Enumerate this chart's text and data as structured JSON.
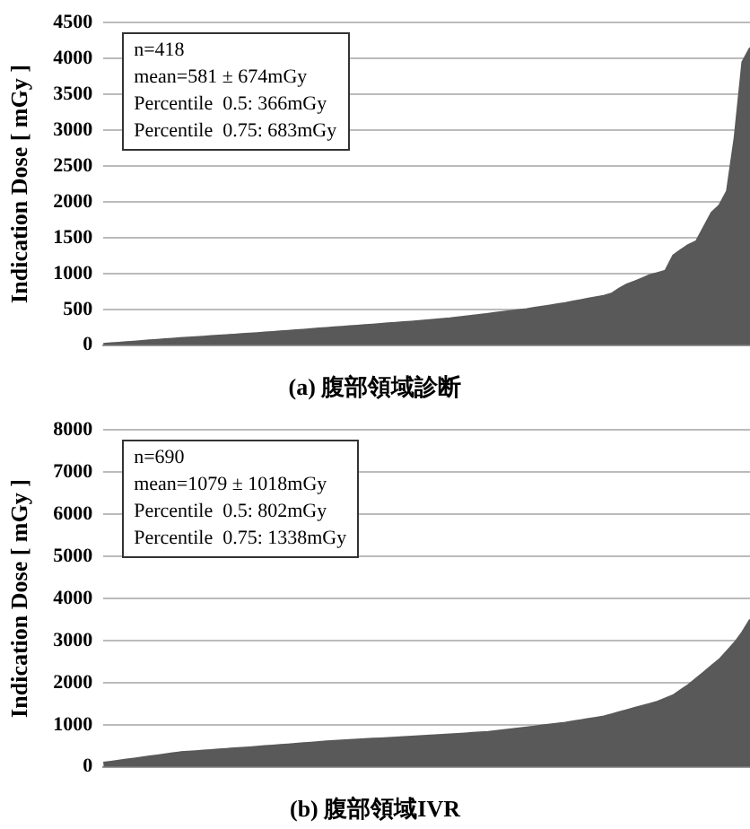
{
  "chart_data": [
    {
      "type": "area",
      "title": "(a) 腹部領域診断",
      "ylabel": "Indication Dose [ mGy ]",
      "color": "#595959",
      "ylim": [
        0,
        4500
      ],
      "yticks": [
        0,
        500,
        1000,
        1500,
        2000,
        2500,
        3000,
        3500,
        4000,
        4500
      ],
      "grid": "y",
      "tick_labels": "y",
      "annotations": [
        "n=418",
        "mean=581 ± 674mGy",
        "Percentile  0.5: 366mGy",
        "Percentile  0.75: 683mGy"
      ],
      "categories": [
        null,
        null,
        null,
        null,
        null,
        null,
        null,
        null,
        null,
        null,
        null,
        null,
        null,
        null,
        null,
        null,
        null,
        null,
        null,
        null,
        null,
        null,
        null,
        null,
        null,
        null,
        null,
        null,
        null,
        null,
        null,
        null,
        null,
        null,
        null,
        null,
        null,
        null,
        null,
        null,
        null,
        null,
        null,
        null,
        null,
        null,
        null,
        null,
        null,
        null,
        null,
        null,
        null,
        null,
        null,
        null,
        null,
        null,
        null,
        null,
        null,
        null,
        null,
        null,
        null,
        null,
        null,
        null,
        null,
        null,
        null,
        null,
        null,
        null,
        null,
        null,
        null,
        null,
        null,
        null,
        null,
        null,
        null,
        null,
        null
      ],
      "values": [
        20,
        28,
        36,
        44,
        52,
        60,
        68,
        76,
        84,
        92,
        100,
        107,
        114,
        121,
        128,
        135,
        142,
        149,
        156,
        163,
        170,
        178,
        186,
        194,
        202,
        210,
        218,
        226,
        234,
        242,
        250,
        258,
        266,
        274,
        282,
        290,
        298,
        306,
        314,
        322,
        330,
        339,
        348,
        357,
        366,
        375,
        388,
        401,
        414,
        427,
        440,
        453,
        466,
        479,
        492,
        505,
        522,
        539,
        556,
        573,
        590,
        610,
        630,
        650,
        670,
        690,
        720,
        790,
        850,
        890,
        935,
        980,
        1010,
        1040,
        1250,
        1330,
        1400,
        1450,
        1650,
        1850,
        1950,
        2150,
        2900,
        3950,
        4150
      ]
    },
    {
      "type": "area",
      "title": "(b) 腹部領域IVR",
      "ylabel": "Indication Dose [ mGy ]",
      "color": "#595959",
      "ylim": [
        0,
        8000
      ],
      "yticks": [
        0,
        1000,
        2000,
        3000,
        4000,
        5000,
        6000,
        7000,
        8000
      ],
      "grid": "y",
      "tick_labels": "y",
      "annotations": [
        "n=690",
        "mean=1079 ± 1018mGy",
        "Percentile  0.5: 802mGy",
        "Percentile  0.75: 1338mGy"
      ],
      "categories": [
        null,
        null,
        null,
        null,
        null,
        null,
        null,
        null,
        null,
        null,
        null,
        null,
        null,
        null,
        null,
        null,
        null,
        null,
        null,
        null,
        null,
        null,
        null,
        null,
        null,
        null,
        null,
        null,
        null,
        null,
        null,
        null,
        null,
        null,
        null,
        null,
        null,
        null,
        null,
        null,
        null,
        null,
        null,
        null,
        null,
        null,
        null,
        null,
        null,
        null,
        null,
        null,
        null,
        null,
        null,
        null,
        null,
        null,
        null,
        null,
        null,
        null,
        null,
        null,
        null,
        null,
        null,
        null,
        null,
        null,
        null,
        null,
        null,
        null,
        null,
        null,
        null,
        null,
        null,
        null,
        null,
        null,
        null,
        null,
        null
      ],
      "values": [
        100,
        125,
        150,
        175,
        200,
        225,
        250,
        275,
        300,
        325,
        350,
        363,
        376,
        389,
        402,
        415,
        428,
        441,
        454,
        467,
        480,
        494,
        508,
        522,
        536,
        550,
        564,
        578,
        592,
        606,
        620,
        630,
        640,
        650,
        660,
        670,
        680,
        690,
        700,
        710,
        720,
        731,
        742,
        753,
        764,
        775,
        786,
        797,
        808,
        819,
        830,
        852,
        874,
        896,
        918,
        940,
        962,
        984,
        1006,
        1028,
        1050,
        1080,
        1110,
        1140,
        1170,
        1200,
        1250,
        1300,
        1350,
        1400,
        1450,
        1500,
        1550,
        1625,
        1700,
        1825,
        1950,
        2100,
        2250,
        2400,
        2550,
        2750,
        2950,
        3200,
        3500
      ]
    }
  ]
}
